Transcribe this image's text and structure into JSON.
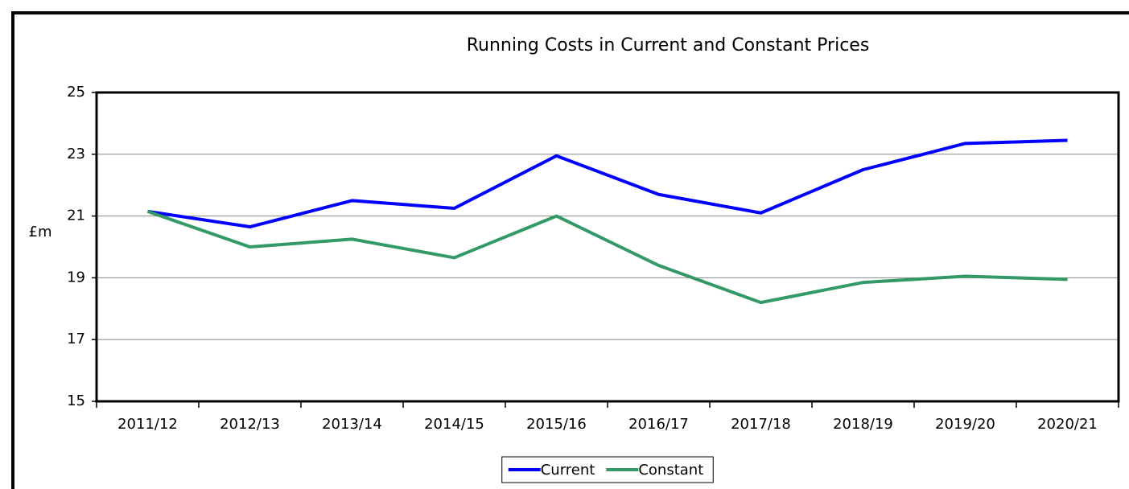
{
  "chart_data": {
    "type": "line",
    "title": "Running Costs in Current and Constant Prices",
    "y_label": "£m",
    "categories": [
      "2011/12",
      "2012/13",
      "2013/14",
      "2014/15",
      "2015/16",
      "2016/17",
      "2017/18",
      "2018/19",
      "2019/20",
      "2020/21"
    ],
    "series": [
      {
        "name": "Current",
        "color": "#0000ff",
        "values": [
          21.15,
          20.65,
          21.5,
          21.25,
          22.95,
          21.7,
          21.1,
          22.5,
          23.35,
          23.45
        ]
      },
      {
        "name": "Constant",
        "color": "#339966",
        "values": [
          21.15,
          20.0,
          20.25,
          19.65,
          21.0,
          19.4,
          18.2,
          18.85,
          19.05,
          18.95
        ]
      }
    ],
    "ylim": [
      15,
      25
    ],
    "yticks": [
      15,
      17,
      19,
      21,
      23,
      25
    ],
    "grid": true,
    "legend": "bottom"
  }
}
